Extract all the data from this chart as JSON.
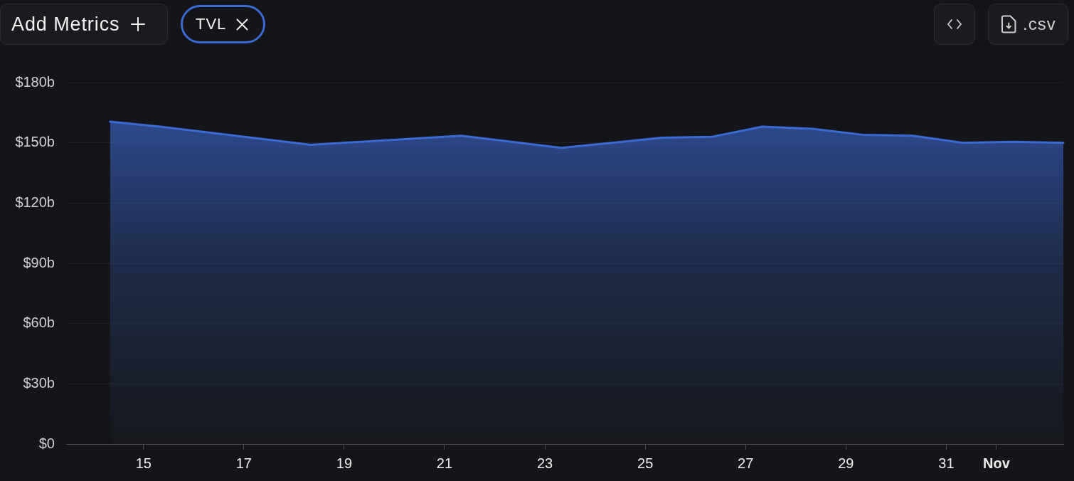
{
  "chart_data": {
    "type": "area",
    "annotations": [
      "Add Metrics",
      "TVL",
      ".csv"
    ],
    "x": [
      "--10-14T08:00",
      "--10-15T08:00",
      "--10-16T08:00",
      "--10-17T08:00",
      "--10-18T08:00",
      "--10-19T08:00",
      "--10-20T08:00",
      "--10-21T08:00",
      "--10-22T08:00",
      "--10-23T08:00",
      "--10-24T08:00",
      "--10-25T08:00",
      "--10-26T08:00",
      "--10-27T08:00",
      "--10-28T08:00",
      "--10-29T08:00",
      "--10-30T08:00",
      "--10-31T08:00",
      "--11-01T08:00",
      "--11-02T08:00"
    ],
    "values": [
      160.5,
      158,
      155,
      152,
      149,
      150.5,
      152,
      153.5,
      150.5,
      147.5,
      150,
      152.5,
      153,
      158,
      157,
      154,
      153.5,
      150,
      150.5,
      150
    ],
    "color": "#3a6bd5",
    "xlim": [
      "--10-13T11:00",
      "--11-02T08:00"
    ],
    "xticks": [
      {
        "value": "--10-15",
        "label": "15"
      },
      {
        "value": "--10-17",
        "label": "17"
      },
      {
        "value": "--10-19",
        "label": "19"
      },
      {
        "value": "--10-21",
        "label": "21"
      },
      {
        "value": "--10-23",
        "label": "23"
      },
      {
        "value": "--10-25",
        "label": "25"
      },
      {
        "value": "--10-27",
        "label": "27"
      },
      {
        "value": "--10-29",
        "label": "29"
      },
      {
        "value": "--10-31",
        "label": "31"
      },
      {
        "value": "--11-01",
        "label": "Nov"
      }
    ],
    "ylim": [
      0,
      180
    ],
    "yticks": [
      {
        "value": 0,
        "label": "$0"
      },
      {
        "value": 30,
        "label": "$30b"
      },
      {
        "value": 60,
        "label": "$60b"
      },
      {
        "value": 90,
        "label": "$90b"
      },
      {
        "value": 120,
        "label": "$120b"
      },
      {
        "value": 150,
        "label": "$150b"
      },
      {
        "value": 180,
        "label": "$180b"
      }
    ],
    "grid": "y"
  }
}
